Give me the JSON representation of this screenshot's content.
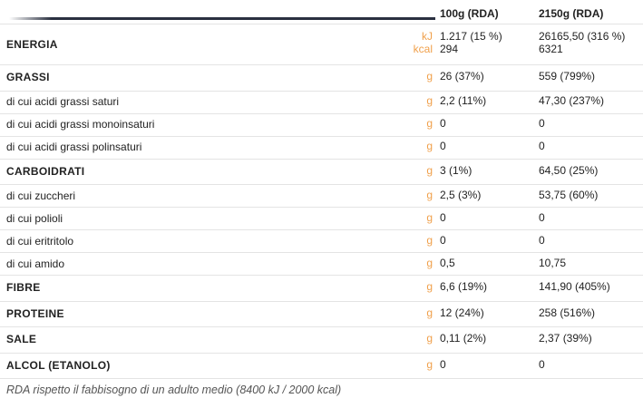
{
  "table": {
    "header": [
      "100g (RDA)",
      "2150g (RDA)"
    ],
    "rows": [
      {
        "label": "ENERGIA",
        "bold": true,
        "units": [
          "kJ",
          "kcal"
        ],
        "col1": [
          "1.217 (15 %)",
          "294"
        ],
        "col2": [
          "26165,50 (316 %)",
          "6321"
        ]
      },
      {
        "label": "GRASSI",
        "bold": true,
        "units": [
          "g"
        ],
        "col1": [
          "26 (37%)"
        ],
        "col2": [
          "559 (799%)"
        ]
      },
      {
        "label": "di cui acidi grassi saturi",
        "bold": false,
        "units": [
          "g"
        ],
        "col1": [
          "2,2 (11%)"
        ],
        "col2": [
          "47,30  (237%)"
        ]
      },
      {
        "label": "di cui acidi grassi monoinsaturi",
        "bold": false,
        "units": [
          "g"
        ],
        "col1": [
          "0"
        ],
        "col2": [
          "0"
        ]
      },
      {
        "label": "di cui acidi grassi polinsaturi",
        "bold": false,
        "units": [
          "g"
        ],
        "col1": [
          "0"
        ],
        "col2": [
          "0"
        ]
      },
      {
        "label": "CARBOIDRATI",
        "bold": true,
        "units": [
          "g"
        ],
        "col1": [
          "3 (1%)"
        ],
        "col2": [
          "64,50 (25%)"
        ]
      },
      {
        "label": "di cui zuccheri",
        "bold": false,
        "units": [
          "g"
        ],
        "col1": [
          "2,5 (3%)"
        ],
        "col2": [
          "53,75 (60%)"
        ]
      },
      {
        "label": "di cui polioli",
        "bold": false,
        "units": [
          "g"
        ],
        "col1": [
          "0"
        ],
        "col2": [
          "0"
        ]
      },
      {
        "label": "di cui eritritolo",
        "bold": false,
        "units": [
          "g"
        ],
        "col1": [
          "0"
        ],
        "col2": [
          "0"
        ]
      },
      {
        "label": "di cui amido",
        "bold": false,
        "units": [
          "g"
        ],
        "col1": [
          "0,5"
        ],
        "col2": [
          "10,75"
        ]
      },
      {
        "label": "FIBRE",
        "bold": true,
        "units": [
          "g"
        ],
        "col1": [
          "6,6 (19%)"
        ],
        "col2": [
          "141,90 (405%)"
        ]
      },
      {
        "label": "PROTEINE",
        "bold": true,
        "units": [
          "g"
        ],
        "col1": [
          "12 (24%)"
        ],
        "col2": [
          "258 (516%)"
        ]
      },
      {
        "label": "SALE",
        "bold": true,
        "units": [
          "g"
        ],
        "col1": [
          "0,11 (2%)"
        ],
        "col2": [
          "2,37 (39%)"
        ]
      },
      {
        "label": "ALCOL (ETANOLO)",
        "bold": true,
        "units": [
          "g"
        ],
        "col1": [
          "0"
        ],
        "col2": [
          "0"
        ]
      }
    ],
    "footnote": "RDA rispetto il fabbisogno di un adulto medio (8400 kJ / 2000 kcal)"
  }
}
